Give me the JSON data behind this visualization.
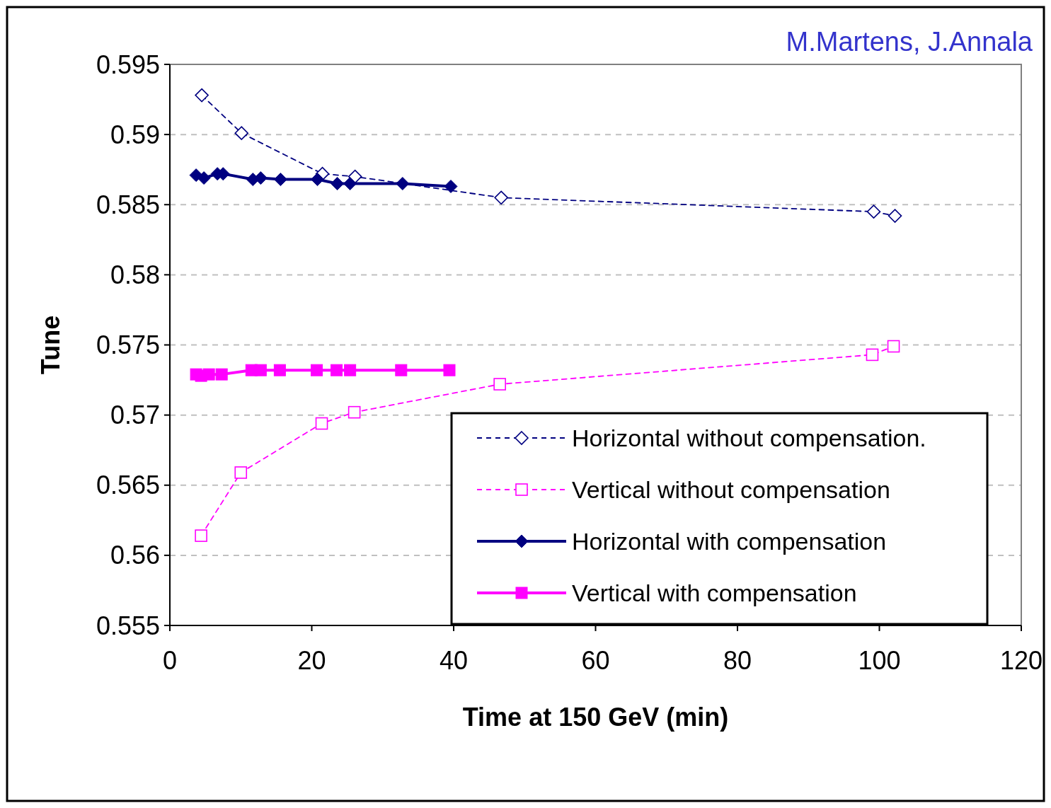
{
  "chart_data": {
    "type": "line",
    "xlabel": "Time at 150 GeV (min)",
    "ylabel": "Tune",
    "annotations": [
      "M.Martens, J.Annala"
    ],
    "xlim": [
      0,
      120
    ],
    "xticks": [
      0,
      20,
      40,
      60,
      80,
      100,
      120
    ],
    "ylim": [
      0.555,
      0.595
    ],
    "yticks": [
      0.555,
      0.56,
      0.565,
      0.57,
      0.575,
      0.58,
      0.585,
      0.59,
      0.595
    ],
    "grid": "y",
    "legend": "bottom right",
    "series": [
      {
        "name": "Horizontal without compensation.",
        "color": "#000080",
        "marker": "diamond",
        "line_style": "dashed",
        "x": [
          4.5,
          10.1,
          21.5,
          26.1,
          46.7,
          99.2,
          102.2
        ],
        "values": [
          0.5928,
          0.5901,
          0.5872,
          0.587,
          0.5855,
          0.5845,
          0.5842
        ]
      },
      {
        "name": "Vertical without compensation",
        "color": "#ff00ff",
        "marker": "square",
        "line_style": "dashed",
        "x": [
          4.4,
          10,
          21.4,
          26,
          46.5,
          99,
          102
        ],
        "values": [
          0.5614,
          0.5659,
          0.5694,
          0.5702,
          0.5722,
          0.5743,
          0.5749
        ]
      },
      {
        "name": "Horizontal with compensation",
        "color": "#000080",
        "marker": "diamond",
        "line_style": "solid",
        "x": [
          3.7,
          4.8,
          6.7,
          7.5,
          11.7,
          12.8,
          15.6,
          20.8,
          23.6,
          25.4,
          32.8,
          39.6
        ],
        "values": [
          0.5871,
          0.5869,
          0.5872,
          0.5872,
          0.5868,
          0.5869,
          0.5868,
          0.5868,
          0.5865,
          0.5865,
          0.5865,
          0.5863
        ]
      },
      {
        "name": "Vertical with compensation",
        "color": "#ff00ff",
        "marker": "square",
        "line_style": "solid",
        "x": [
          3.7,
          4.4,
          5.5,
          7.3,
          11.5,
          12.8,
          15.5,
          20.7,
          23.5,
          25.4,
          32.6,
          39.4
        ],
        "values": [
          0.5729,
          0.5728,
          0.5729,
          0.5729,
          0.5732,
          0.5732,
          0.5732,
          0.5732,
          0.5732,
          0.5732,
          0.5732,
          0.5732
        ]
      }
    ]
  }
}
